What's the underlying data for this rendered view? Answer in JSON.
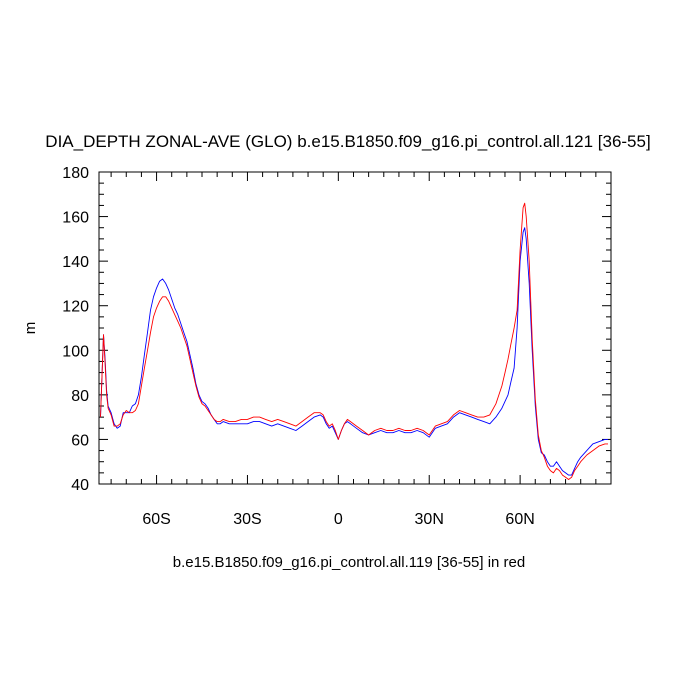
{
  "chart_data": {
    "type": "line",
    "title": "DIA_DEPTH ZONAL-AVE (GLO) b.e15.B1850.f09_g16.pi_control.all.121 [36-55]",
    "xlabel": "b.e15.B1850.f09_g16.pi_control.all.119 [36-55] in red",
    "ylabel": "m",
    "xlim": [
      -79,
      90
    ],
    "ylim": [
      40,
      180
    ],
    "yticks": [
      40,
      60,
      80,
      100,
      120,
      140,
      160,
      180
    ],
    "xticks": [
      {
        "value": -60,
        "label": "60S"
      },
      {
        "value": -30,
        "label": "30S"
      },
      {
        "value": 0,
        "label": "0"
      },
      {
        "value": 30,
        "label": "30N"
      },
      {
        "value": 60,
        "label": "60N"
      }
    ],
    "grid": false,
    "series": [
      {
        "color": "#0000ff",
        "points": [
          [
            -78.5,
            70
          ],
          [
            -77.5,
            107
          ],
          [
            -77,
            96
          ],
          [
            -76.5,
            82
          ],
          [
            -76,
            75
          ],
          [
            -75,
            72
          ],
          [
            -74,
            67
          ],
          [
            -73,
            65
          ],
          [
            -72,
            66
          ],
          [
            -71,
            72
          ],
          [
            -70,
            72
          ],
          [
            -69,
            72
          ],
          [
            -68,
            75
          ],
          [
            -67,
            76
          ],
          [
            -66,
            80
          ],
          [
            -65,
            88
          ],
          [
            -64,
            98
          ],
          [
            -63,
            108
          ],
          [
            -62,
            118
          ],
          [
            -61,
            124
          ],
          [
            -60,
            128
          ],
          [
            -59,
            131
          ],
          [
            -58,
            132
          ],
          [
            -57,
            130
          ],
          [
            -56,
            127
          ],
          [
            -55,
            123
          ],
          [
            -54,
            119
          ],
          [
            -53,
            116
          ],
          [
            -52,
            112
          ],
          [
            -51,
            108
          ],
          [
            -50,
            104
          ],
          [
            -49,
            98
          ],
          [
            -48,
            92
          ],
          [
            -47,
            85
          ],
          [
            -46,
            80
          ],
          [
            -45,
            77
          ],
          [
            -44,
            76
          ],
          [
            -43,
            74
          ],
          [
            -42,
            71
          ],
          [
            -41,
            69
          ],
          [
            -40,
            67
          ],
          [
            -39,
            67
          ],
          [
            -38,
            68
          ],
          [
            -36,
            67
          ],
          [
            -34,
            67
          ],
          [
            -32,
            67
          ],
          [
            -30,
            67
          ],
          [
            -28,
            68
          ],
          [
            -26,
            68
          ],
          [
            -24,
            67
          ],
          [
            -22,
            66
          ],
          [
            -20,
            67
          ],
          [
            -18,
            66
          ],
          [
            -16,
            65
          ],
          [
            -14,
            64
          ],
          [
            -12,
            66
          ],
          [
            -10,
            68
          ],
          [
            -8,
            70
          ],
          [
            -6,
            71
          ],
          [
            -5,
            70
          ],
          [
            -4,
            67
          ],
          [
            -3,
            65
          ],
          [
            -2,
            66
          ],
          [
            -1,
            63
          ],
          [
            0,
            60
          ],
          [
            1,
            64
          ],
          [
            2,
            67
          ],
          [
            3,
            68
          ],
          [
            4,
            67
          ],
          [
            6,
            65
          ],
          [
            8,
            63
          ],
          [
            10,
            62
          ],
          [
            12,
            63
          ],
          [
            14,
            64
          ],
          [
            16,
            63
          ],
          [
            18,
            63
          ],
          [
            20,
            64
          ],
          [
            22,
            63
          ],
          [
            24,
            63
          ],
          [
            26,
            64
          ],
          [
            28,
            63
          ],
          [
            30,
            61
          ],
          [
            32,
            65
          ],
          [
            34,
            66
          ],
          [
            36,
            67
          ],
          [
            38,
            70
          ],
          [
            40,
            72
          ],
          [
            42,
            71
          ],
          [
            44,
            70
          ],
          [
            46,
            69
          ],
          [
            48,
            68
          ],
          [
            50,
            67
          ],
          [
            52,
            70
          ],
          [
            54,
            74
          ],
          [
            56,
            80
          ],
          [
            57,
            86
          ],
          [
            58,
            92
          ],
          [
            59,
            110
          ],
          [
            60,
            140
          ],
          [
            61,
            153
          ],
          [
            61.5,
            155
          ],
          [
            62,
            150
          ],
          [
            63,
            130
          ],
          [
            64,
            100
          ],
          [
            65,
            75
          ],
          [
            66,
            60
          ],
          [
            67,
            54
          ],
          [
            68,
            53
          ],
          [
            69,
            50
          ],
          [
            70,
            48
          ],
          [
            71,
            48
          ],
          [
            72,
            50
          ],
          [
            73,
            48
          ],
          [
            74,
            46
          ],
          [
            75,
            45
          ],
          [
            76,
            44
          ],
          [
            77,
            44
          ],
          [
            78,
            47
          ],
          [
            79,
            50
          ],
          [
            80,
            52
          ],
          [
            82,
            55
          ],
          [
            84,
            58
          ],
          [
            86,
            59
          ],
          [
            88,
            60
          ],
          [
            89,
            60
          ]
        ]
      },
      {
        "color": "#ff0000",
        "points": [
          [
            -78.5,
            70
          ],
          [
            -77.5,
            107
          ],
          [
            -77,
            94
          ],
          [
            -76.5,
            80
          ],
          [
            -76,
            74
          ],
          [
            -75,
            71
          ],
          [
            -74,
            66
          ],
          [
            -73,
            66
          ],
          [
            -72,
            67
          ],
          [
            -71,
            71
          ],
          [
            -70,
            73
          ],
          [
            -69,
            72
          ],
          [
            -68,
            72
          ],
          [
            -67,
            73
          ],
          [
            -66,
            76
          ],
          [
            -65,
            84
          ],
          [
            -64,
            92
          ],
          [
            -63,
            100
          ],
          [
            -62,
            108
          ],
          [
            -61,
            115
          ],
          [
            -60,
            119
          ],
          [
            -59,
            122
          ],
          [
            -58,
            124
          ],
          [
            -57,
            124
          ],
          [
            -56,
            122
          ],
          [
            -55,
            119
          ],
          [
            -54,
            116
          ],
          [
            -53,
            113
          ],
          [
            -52,
            110
          ],
          [
            -51,
            106
          ],
          [
            -50,
            102
          ],
          [
            -49,
            96
          ],
          [
            -48,
            90
          ],
          [
            -47,
            84
          ],
          [
            -46,
            79
          ],
          [
            -45,
            76
          ],
          [
            -44,
            75
          ],
          [
            -43,
            73
          ],
          [
            -42,
            71
          ],
          [
            -41,
            69
          ],
          [
            -40,
            68
          ],
          [
            -39,
            68
          ],
          [
            -38,
            69
          ],
          [
            -36,
            68
          ],
          [
            -34,
            68
          ],
          [
            -32,
            69
          ],
          [
            -30,
            69
          ],
          [
            -28,
            70
          ],
          [
            -26,
            70
          ],
          [
            -24,
            69
          ],
          [
            -22,
            68
          ],
          [
            -20,
            69
          ],
          [
            -18,
            68
          ],
          [
            -16,
            67
          ],
          [
            -14,
            66
          ],
          [
            -12,
            68
          ],
          [
            -10,
            70
          ],
          [
            -8,
            72
          ],
          [
            -6,
            72
          ],
          [
            -5,
            71
          ],
          [
            -4,
            68
          ],
          [
            -3,
            66
          ],
          [
            -2,
            67
          ],
          [
            -1,
            64
          ],
          [
            0,
            60
          ],
          [
            1,
            64
          ],
          [
            2,
            67
          ],
          [
            3,
            69
          ],
          [
            4,
            68
          ],
          [
            6,
            66
          ],
          [
            8,
            64
          ],
          [
            10,
            62
          ],
          [
            12,
            64
          ],
          [
            14,
            65
          ],
          [
            16,
            64
          ],
          [
            18,
            64
          ],
          [
            20,
            65
          ],
          [
            22,
            64
          ],
          [
            24,
            64
          ],
          [
            26,
            65
          ],
          [
            28,
            64
          ],
          [
            30,
            62
          ],
          [
            32,
            66
          ],
          [
            34,
            67
          ],
          [
            36,
            68
          ],
          [
            38,
            71
          ],
          [
            40,
            73
          ],
          [
            42,
            72
          ],
          [
            44,
            71
          ],
          [
            46,
            70
          ],
          [
            48,
            70
          ],
          [
            50,
            71
          ],
          [
            52,
            76
          ],
          [
            54,
            84
          ],
          [
            55,
            90
          ],
          [
            56,
            96
          ],
          [
            57,
            103
          ],
          [
            58,
            110
          ],
          [
            59,
            118
          ],
          [
            60,
            145
          ],
          [
            61,
            164
          ],
          [
            61.5,
            166
          ],
          [
            62,
            160
          ],
          [
            63,
            140
          ],
          [
            64,
            105
          ],
          [
            65,
            78
          ],
          [
            66,
            62
          ],
          [
            67,
            55
          ],
          [
            68,
            52
          ],
          [
            69,
            48
          ],
          [
            70,
            46
          ],
          [
            71,
            45
          ],
          [
            72,
            47
          ],
          [
            73,
            46
          ],
          [
            74,
            44
          ],
          [
            75,
            43
          ],
          [
            76,
            42
          ],
          [
            77,
            43
          ],
          [
            78,
            46
          ],
          [
            79,
            48
          ],
          [
            80,
            50
          ],
          [
            82,
            53
          ],
          [
            84,
            55
          ],
          [
            86,
            57
          ],
          [
            88,
            58
          ],
          [
            89,
            58
          ]
        ]
      }
    ]
  }
}
